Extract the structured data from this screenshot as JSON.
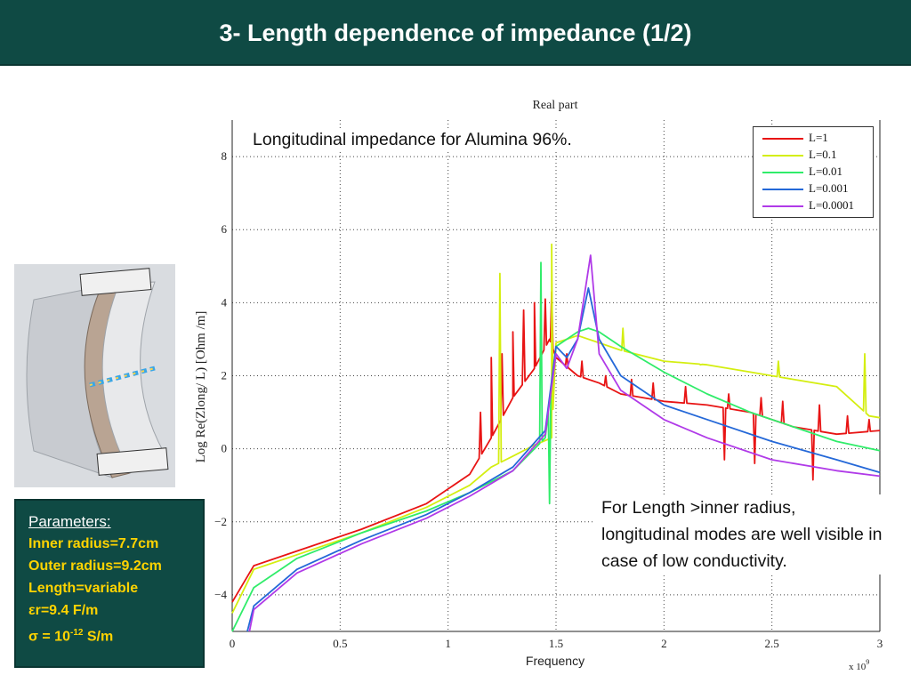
{
  "slide": {
    "title": "3- Length dependence of impedance (1/2)",
    "annotation": "Longitudinal impedance for Alumina 96%.",
    "note": "For Length >inner radius, longitudinal modes are well visible in case of low conductivity."
  },
  "parameters": {
    "heading": "Parameters:",
    "lines": [
      "Inner radius=7.7cm",
      "Outer radius=9.2cm",
      "Length=variable",
      "εr=9.4 F/m"
    ],
    "sigma_prefix": "σ  = 10",
    "sigma_exponent": "-12",
    "sigma_unit": " S/m"
  },
  "colors": {
    "header_bg": "#0f4a44",
    "param_text": "#ffd300",
    "L=1": "#e81414",
    "L=0.1": "#d4ee10",
    "L=0.01": "#30ec6a",
    "L=0.001": "#2468d8",
    "L=0.0001": "#b03ae8"
  },
  "chart_data": {
    "type": "line",
    "title": "Real part",
    "xlabel": "Frequency",
    "ylabel": "Log Re(Zlong/ L) [Ohm /m]",
    "x_multiplier": "x 10",
    "x_multiplier_exp": "9",
    "xlim": [
      0,
      3
    ],
    "ylim": [
      -5,
      9
    ],
    "xticks": [
      "0",
      "0.5",
      "1",
      "1.5",
      "2",
      "2.5",
      "3"
    ],
    "yticks": [
      "−4",
      "−2",
      "0",
      "2",
      "4",
      "6",
      "8"
    ],
    "grid": true,
    "legend_position": "top-right",
    "series": [
      {
        "name": "L=1",
        "color": "#e81414",
        "x": [
          0.0,
          0.1,
          0.3,
          0.6,
          0.9,
          1.1,
          1.2,
          1.3,
          1.4,
          1.47,
          1.5,
          1.6,
          1.7,
          1.8,
          2.0,
          2.2,
          2.4,
          2.6,
          2.8,
          3.0
        ],
        "y": [
          -4.2,
          -3.2,
          -2.8,
          -2.2,
          -1.5,
          -0.7,
          0.3,
          1.4,
          2.2,
          3.0,
          2.5,
          2.0,
          1.8,
          1.5,
          1.3,
          1.2,
          1.0,
          0.6,
          0.4,
          0.5
        ],
        "peaks": [
          [
            1.15,
            1.0
          ],
          [
            1.2,
            2.5
          ],
          [
            1.25,
            2.6
          ],
          [
            1.3,
            3.2
          ],
          [
            1.35,
            3.8
          ],
          [
            1.4,
            4.0
          ],
          [
            1.45,
            4.1
          ],
          [
            1.48,
            4.3
          ],
          [
            1.55,
            2.6
          ],
          [
            1.62,
            2.4
          ],
          [
            1.73,
            2.0
          ],
          [
            1.85,
            1.9
          ],
          [
            1.95,
            1.8
          ],
          [
            2.1,
            1.7
          ],
          [
            2.3,
            1.5
          ],
          [
            2.45,
            1.4
          ],
          [
            2.55,
            1.3
          ],
          [
            2.72,
            1.2
          ],
          [
            2.85,
            0.9
          ],
          [
            2.95,
            0.8
          ]
        ],
        "dips": [
          [
            2.28,
            -0.3
          ],
          [
            2.42,
            -0.4
          ],
          [
            2.69,
            -0.85
          ]
        ]
      },
      {
        "name": "L=0.1",
        "color": "#d4ee10",
        "x": [
          0.0,
          0.1,
          0.3,
          0.6,
          0.9,
          1.1,
          1.2,
          1.3,
          1.4,
          1.48,
          1.5,
          1.6,
          1.7,
          1.8,
          2.0,
          2.2,
          2.4,
          2.6,
          2.8,
          2.95,
          3.0
        ],
        "y": [
          -4.5,
          -3.3,
          -2.9,
          -2.3,
          -1.6,
          -1.0,
          -0.5,
          -0.2,
          0.1,
          0.3,
          2.9,
          3.1,
          2.9,
          2.7,
          2.4,
          2.3,
          2.1,
          1.9,
          1.7,
          0.9,
          0.85
        ],
        "peaks": [
          [
            1.24,
            4.8
          ],
          [
            1.48,
            5.6
          ],
          [
            1.81,
            3.3
          ],
          [
            2.17,
            2.3
          ],
          [
            2.53,
            2.4
          ],
          [
            2.93,
            2.6
          ]
        ],
        "dips": []
      },
      {
        "name": "L=0.01",
        "color": "#30ec6a",
        "x": [
          0.0,
          0.1,
          0.3,
          0.6,
          0.9,
          1.1,
          1.3,
          1.45,
          1.5,
          1.6,
          1.65,
          1.7,
          1.8,
          2.0,
          2.2,
          2.4,
          2.6,
          2.8,
          3.0
        ],
        "y": [
          -5.0,
          -3.8,
          -3.0,
          -2.3,
          -1.7,
          -1.2,
          -0.6,
          0.3,
          2.8,
          3.2,
          3.3,
          3.2,
          2.8,
          2.1,
          1.5,
          1.0,
          0.6,
          0.2,
          -0.05
        ],
        "peaks": [
          [
            1.43,
            5.1
          ]
        ],
        "dips": [
          [
            1.47,
            -1.5
          ]
        ]
      },
      {
        "name": "L=0.001",
        "color": "#2468d8",
        "x": [
          0.07,
          0.1,
          0.3,
          0.6,
          0.9,
          1.1,
          1.3,
          1.45,
          1.5,
          1.55,
          1.6,
          1.65,
          1.7,
          1.8,
          2.0,
          2.2,
          2.5,
          2.8,
          3.0
        ],
        "y": [
          -5.0,
          -4.3,
          -3.3,
          -2.5,
          -1.8,
          -1.2,
          -0.5,
          0.5,
          2.8,
          2.5,
          3.0,
          4.4,
          3.0,
          2.0,
          1.2,
          0.8,
          0.2,
          -0.3,
          -0.65
        ],
        "peaks": [],
        "dips": []
      },
      {
        "name": "L=0.0001",
        "color": "#b03ae8",
        "x": [
          0.08,
          0.1,
          0.3,
          0.6,
          0.9,
          1.1,
          1.3,
          1.45,
          1.5,
          1.55,
          1.6,
          1.66,
          1.7,
          1.8,
          2.0,
          2.2,
          2.5,
          2.8,
          3.0
        ],
        "y": [
          -5.0,
          -4.4,
          -3.4,
          -2.6,
          -1.9,
          -1.3,
          -0.6,
          0.4,
          2.6,
          2.2,
          3.0,
          5.3,
          2.6,
          1.6,
          0.8,
          0.3,
          -0.3,
          -0.6,
          -0.75
        ],
        "peaks": [],
        "dips": []
      }
    ]
  }
}
